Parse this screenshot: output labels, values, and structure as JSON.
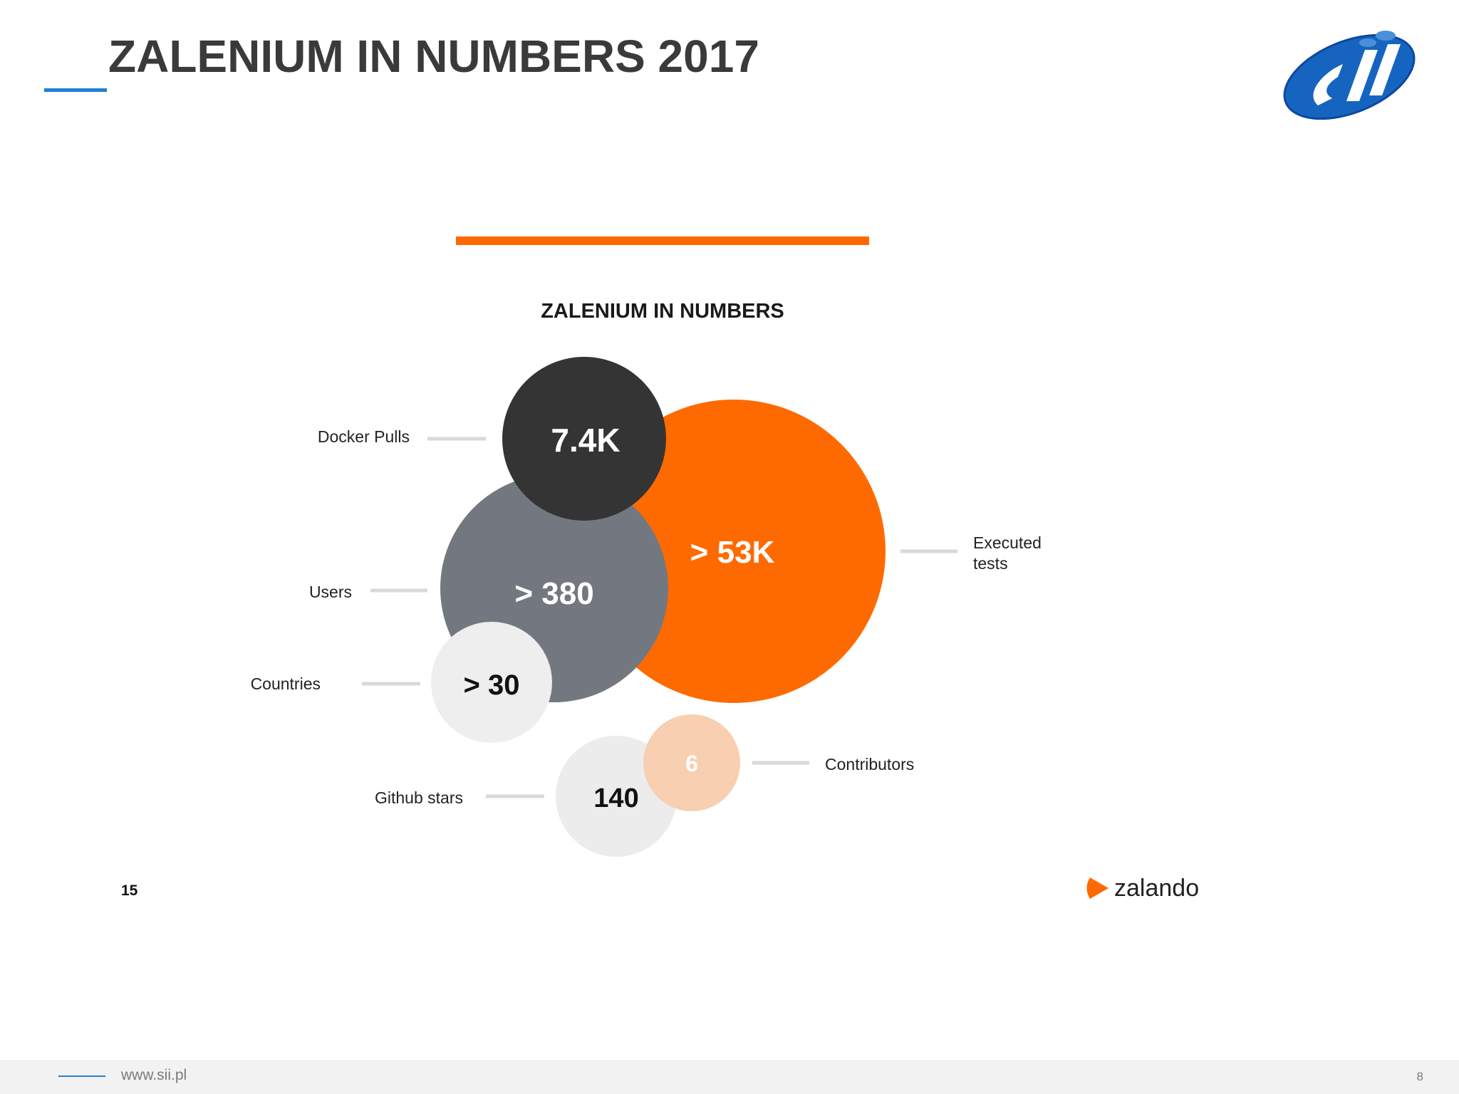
{
  "slide": {
    "title": "ZALENIUM IN NUMBERS 2017"
  },
  "brand": {
    "name": "sii",
    "accent": "#1f7fd4"
  },
  "infographic": {
    "heading": "ZALENIUM IN NUMBERS",
    "page_number": "15",
    "brand_label": "zalando",
    "accent_color": "#ff6a00",
    "stats": [
      {
        "key": "docker_pulls",
        "label": "Docker Pulls",
        "value": "7.4K",
        "color": "#343434"
      },
      {
        "key": "executed_tests",
        "label_lines": [
          "Executed",
          "tests"
        ],
        "value": "> 53K",
        "color": "#ff6a00"
      },
      {
        "key": "users",
        "label": "Users",
        "value": "> 380",
        "color": "#737880"
      },
      {
        "key": "countries",
        "label": "Countries",
        "value": "> 30",
        "color": "#eeeeef"
      },
      {
        "key": "contributors",
        "label": "Contributors",
        "value": "6",
        "color": "#f8cfb0"
      },
      {
        "key": "github_stars",
        "label": "Github stars",
        "value": "140",
        "color": "#ececed"
      }
    ]
  },
  "footer": {
    "url": "www.sii.pl",
    "page": "8"
  }
}
